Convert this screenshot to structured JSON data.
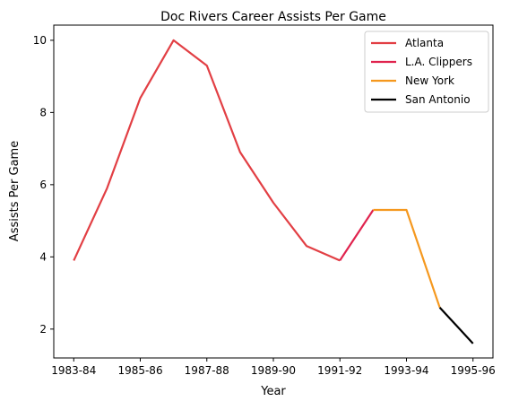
{
  "chart_data": {
    "type": "line",
    "title": "Doc Rivers Career Assists Per Game",
    "xlabel": "Year",
    "ylabel": "Assists Per Game",
    "x_tick_labels": [
      "1983-84",
      "1985-86",
      "1987-88",
      "1989-90",
      "1991-92",
      "1993-94",
      "1995-96"
    ],
    "x_tick_positions": [
      1983,
      1985,
      1987,
      1989,
      1991,
      1993,
      1995
    ],
    "xlim": [
      1982.4,
      1995.6
    ],
    "y_ticks": [
      2,
      4,
      6,
      8,
      10
    ],
    "ylim": [
      1.2,
      10.42
    ],
    "grid": false,
    "legend_location": "top-right",
    "series": [
      {
        "name": "Atlanta",
        "color": "#e23f44",
        "x": [
          1983,
          1984,
          1985,
          1986,
          1987,
          1988,
          1989,
          1990,
          1991
        ],
        "y": [
          3.9,
          5.9,
          8.4,
          10.0,
          9.3,
          6.9,
          5.5,
          4.3,
          3.9
        ]
      },
      {
        "name": "L.A. Clippers",
        "color": "#e0234e",
        "x": [
          1991,
          1992
        ],
        "y": [
          3.9,
          5.3
        ]
      },
      {
        "name": "New York",
        "color": "#f5981e",
        "x": [
          1992,
          1993,
          1994
        ],
        "y": [
          5.3,
          5.3,
          2.6
        ]
      },
      {
        "name": "San Antonio",
        "color": "#000000",
        "x": [
          1994,
          1995
        ],
        "y": [
          2.6,
          1.6
        ]
      }
    ]
  }
}
